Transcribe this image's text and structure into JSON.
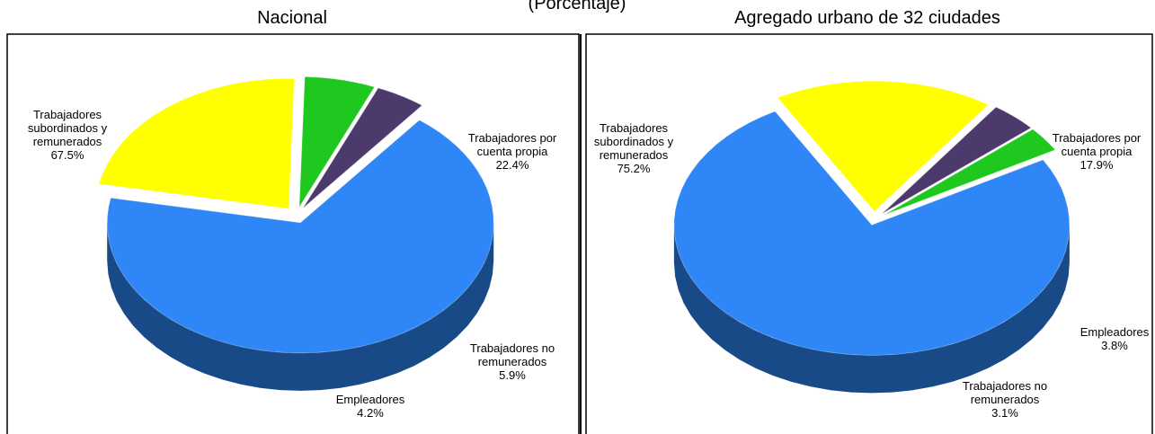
{
  "subtitle": "(Porcentaje)",
  "chart_data": [
    {
      "type": "pie",
      "title": "Nacional",
      "categories": [
        "Trabajadores subordinados y remunerados",
        "Trabajadores por cuenta propia",
        "Trabajadores no remunerados",
        "Empleadores"
      ],
      "values": [
        67.5,
        22.4,
        5.9,
        4.2
      ],
      "value_labels": [
        "67.5%",
        "22.4%",
        "5.9%",
        "4.2%"
      ],
      "colors": [
        "#2e86f7",
        "#ffff00",
        "#1fc81f",
        "#4b3a6b"
      ]
    },
    {
      "type": "pie",
      "title": "Agregado urbano de 32 ciudades",
      "categories": [
        "Trabajadores subordinados y remunerados",
        "Trabajadores por cuenta propia",
        "Empleadores",
        "Trabajadores no remunerados"
      ],
      "values": [
        75.2,
        17.9,
        3.8,
        3.1
      ],
      "value_labels": [
        "75.2%",
        "17.9%",
        "3.8%",
        "3.1%"
      ],
      "colors": [
        "#2e86f7",
        "#ffff00",
        "#4b3a6b",
        "#1fc81f"
      ]
    }
  ]
}
